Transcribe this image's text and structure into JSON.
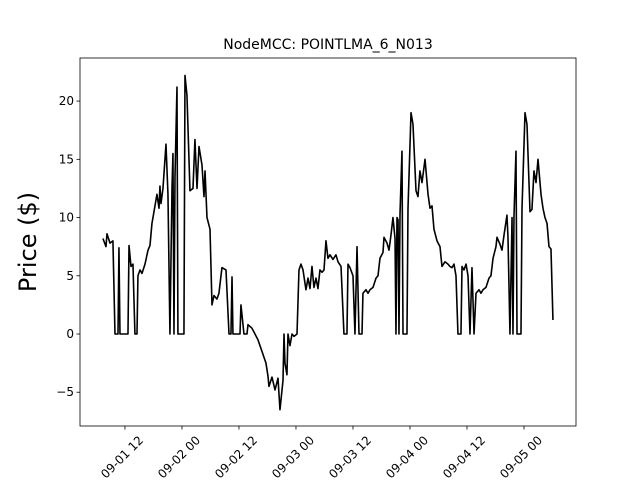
{
  "chart_data": {
    "type": "line",
    "title": "NodeMCC: POINTLMA_6_N013",
    "ylabel": "Price ($)",
    "color": "#000000",
    "xlim": [
      "09-01 02:32",
      "09-05 10:57"
    ],
    "xticks": [
      "09-01 12",
      "09-02 00",
      "09-02 12",
      "09-03 00",
      "09-03 12",
      "09-04 00",
      "09-04 12",
      "09-05 00"
    ],
    "ylim": [
      -7.9,
      23.7
    ],
    "yticks": [
      {
        "value": -5,
        "label": "−5"
      },
      0,
      5,
      10,
      15,
      20
    ],
    "x": [
      "09-01 07:22",
      "09-01 08:00",
      "09-01 08:13",
      "09-01 08:51",
      "09-01 09:28",
      "09-01 09:54",
      "09-01 10:32",
      "09-01 10:44",
      "09-01 10:57",
      "09-01 12:38",
      "09-01 12:51",
      "09-01 13:16",
      "09-01 13:41",
      "09-01 14:06",
      "09-01 14:32",
      "09-01 14:44",
      "09-01 15:10",
      "09-01 15:35",
      "09-01 16:13",
      "09-01 16:51",
      "09-01 17:16",
      "09-01 17:41",
      "09-01 18:19",
      "09-01 18:44",
      "09-01 19:10",
      "09-01 19:22",
      "09-01 19:35",
      "09-01 20:00",
      "09-01 20:38",
      "09-01 21:03",
      "09-01 21:28",
      "09-01 21:54",
      "09-01 22:06",
      "09-01 22:19",
      "09-01 22:32",
      "09-01 22:57",
      "09-01 23:09",
      "09-02 00:25",
      "09-02 00:38",
      "09-02 01:03",
      "09-02 01:41",
      "09-02 02:19",
      "09-02 02:44",
      "09-02 03:10",
      "09-02 03:35",
      "09-02 04:13",
      "09-02 04:38",
      "09-02 04:51",
      "09-02 05:16",
      "09-02 05:54",
      "09-02 06:19",
      "09-02 06:44",
      "09-02 07:22",
      "09-02 07:47",
      "09-02 08:25",
      "09-02 09:16",
      "09-02 09:54",
      "09-02 10:19",
      "09-02 10:32",
      "09-02 10:44",
      "09-02 12:13",
      "09-02 12:25",
      "09-02 13:03",
      "09-02 13:41",
      "09-02 13:54",
      "09-02 14:44",
      "09-02 15:22",
      "09-02 16:00",
      "09-02 16:51",
      "09-02 17:41",
      "09-02 18:06",
      "09-02 18:19",
      "09-02 18:57",
      "09-02 19:35",
      "09-02 20:13",
      "09-02 20:38",
      "09-02 21:16",
      "09-02 21:29",
      "09-02 21:41",
      "09-02 22:06",
      "09-02 22:19",
      "09-02 22:44",
      "09-02 23:10",
      "09-02 23:35",
      "09-03 00:13",
      "09-03 00:38",
      "09-03 01:03",
      "09-03 01:29",
      "09-03 02:06",
      "09-03 02:32",
      "09-03 02:57",
      "09-03 03:22",
      "09-03 03:47",
      "09-03 04:13",
      "09-03 04:38",
      "09-03 05:03",
      "09-03 05:29",
      "09-03 05:54",
      "09-03 06:19",
      "09-03 06:44",
      "09-03 07:10",
      "09-03 07:47",
      "09-03 08:25",
      "09-03 08:51",
      "09-03 09:29",
      "09-03 10:06",
      "09-03 10:44",
      "09-03 10:57",
      "09-03 11:22",
      "09-03 12:00",
      "09-03 12:25",
      "09-03 12:51",
      "09-03 13:16",
      "09-03 13:54",
      "09-03 14:06",
      "09-03 14:44",
      "09-03 15:10",
      "09-03 15:35",
      "09-03 16:13",
      "09-03 16:51",
      "09-03 17:16",
      "09-03 17:41",
      "09-03 18:19",
      "09-03 18:32",
      "09-03 19:10",
      "09-03 19:35",
      "09-03 20:00",
      "09-03 20:25",
      "09-03 20:51",
      "09-03 21:03",
      "09-03 21:16",
      "09-03 21:29",
      "09-03 21:41",
      "09-03 21:54",
      "09-03 22:19",
      "09-03 22:32",
      "09-03 23:22",
      "09-03 23:35",
      "09-04 00:13",
      "09-04 00:38",
      "09-04 01:16",
      "09-04 01:41",
      "09-04 02:06",
      "09-04 02:32",
      "09-04 03:10",
      "09-04 03:48",
      "09-04 04:13",
      "09-04 04:38",
      "09-04 05:03",
      "09-04 05:41",
      "09-04 06:19",
      "09-04 06:44",
      "09-04 07:22",
      "09-04 08:00",
      "09-04 08:25",
      "09-04 08:51",
      "09-04 09:16",
      "09-04 09:41",
      "09-04 10:06",
      "09-04 10:44",
      "09-04 10:57",
      "09-04 11:22",
      "09-04 11:48",
      "09-04 12:13",
      "09-04 12:38",
      "09-04 13:03",
      "09-04 13:29",
      "09-04 13:54",
      "09-04 14:32",
      "09-04 14:57",
      "09-04 15:22",
      "09-04 16:00",
      "09-04 16:38",
      "09-04 17:03",
      "09-04 17:29",
      "09-04 18:06",
      "09-04 18:19",
      "09-04 18:57",
      "09-04 19:22",
      "09-04 19:48",
      "09-04 20:25",
      "09-04 20:38",
      "09-04 21:03",
      "09-04 21:29",
      "09-04 21:41",
      "09-04 21:54",
      "09-04 22:19",
      "09-04 22:32",
      "09-04 23:22",
      "09-04 23:35",
      "09-05 00:13",
      "09-05 00:38",
      "09-05 01:16",
      "09-05 01:41",
      "09-05 02:06",
      "09-05 02:32",
      "09-05 02:57",
      "09-05 03:35",
      "09-05 04:00",
      "09-05 04:25",
      "09-05 04:51",
      "09-05 05:16",
      "09-05 05:41",
      "09-05 06:06"
    ],
    "values": [
      8.2,
      7.5,
      8.6,
      7.8,
      8.0,
      0,
      0,
      7.4,
      0,
      0,
      7.6,
      5.8,
      6.0,
      0,
      0,
      5.0,
      5.5,
      5.2,
      6.0,
      7.2,
      7.6,
      9.5,
      11.0,
      12.0,
      10.8,
      12.7,
      11.2,
      12.5,
      16.3,
      12.0,
      0,
      12.5,
      15.5,
      0,
      13.5,
      21.2,
      0,
      0,
      22.2,
      20.5,
      12.3,
      12.5,
      16.7,
      12.5,
      16.1,
      14.5,
      11.8,
      14.0,
      10.0,
      9.0,
      2.5,
      3.3,
      3.0,
      3.5,
      5.7,
      5.5,
      0,
      0,
      4.9,
      0,
      0,
      2.5,
      0,
      0,
      0.8,
      0.5,
      0,
      -0.5,
      -1.5,
      -2.5,
      -3.6,
      -4.5,
      -3.7,
      -4.8,
      -3.8,
      -6.5,
      -4.0,
      0,
      -2.5,
      -3.5,
      0,
      -1.0,
      0,
      -0.2,
      0,
      5.5,
      6.0,
      5.5,
      3.8,
      4.8,
      3.9,
      5.8,
      4.0,
      4.8,
      3.9,
      5.5,
      5.3,
      5.5,
      8.0,
      6.5,
      6.8,
      6.4,
      6.8,
      6.2,
      5.8,
      0,
      0,
      6.0,
      5.7,
      5.0,
      0,
      7.5,
      0,
      0,
      3.5,
      3.8,
      3.5,
      3.8,
      4.0,
      4.8,
      5.0,
      6.5,
      7.0,
      8.3,
      7.8,
      7.2,
      8.5,
      10.0,
      8.2,
      0,
      10.0,
      9.8,
      0,
      10.3,
      15.7,
      0,
      0,
      10.8,
      19.0,
      18.0,
      12.3,
      11.8,
      14.0,
      13.0,
      15.0,
      12.0,
      10.8,
      11.0,
      9.0,
      8.0,
      7.5,
      5.8,
      6.2,
      6.0,
      5.8,
      5.7,
      6.0,
      5.0,
      0,
      0,
      5.8,
      5.5,
      6.0,
      5.0,
      0,
      5.7,
      0,
      3.5,
      3.8,
      3.5,
      3.8,
      4.0,
      4.8,
      5.0,
      6.5,
      7.5,
      8.3,
      7.7,
      7.2,
      8.5,
      10.2,
      8.3,
      0,
      10.0,
      0,
      10.2,
      15.7,
      0,
      0,
      10.8,
      19.0,
      18.0,
      10.5,
      10.7,
      14.0,
      13.0,
      15.0,
      12.0,
      10.8,
      10.0,
      9.5,
      7.5,
      7.3,
      1.2
    ]
  }
}
